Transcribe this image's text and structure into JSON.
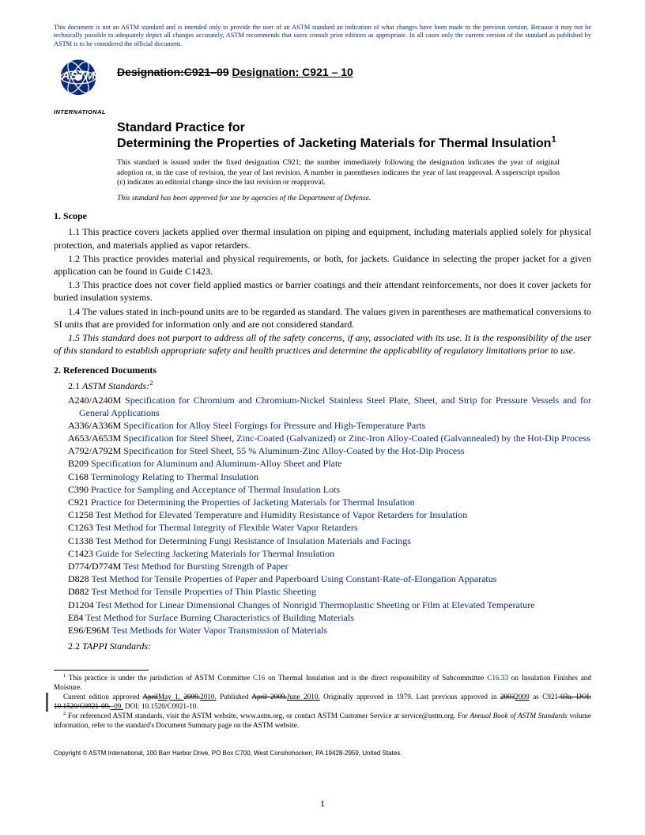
{
  "colors": {
    "link": "#0a2a7a",
    "text": "#000000",
    "bg": "#ffffff",
    "changebar": "#555555"
  },
  "disclaimer": "This document is not an ASTM standard and is intended only to provide the user of an ASTM standard an indication of what changes have been made to the previous version. Because it may not be technically possible to adequately depict all changes accurately, ASTM recommends that users consult prior editions as appropriate. In all cases only the current version of the standard as published by ASTM is to be considered the official document.",
  "logo_label": "INTERNATIONAL",
  "designation": {
    "old_prefix": "Designation:",
    "old_code": "C921–09",
    "new_full": "Designation: C921 – 10"
  },
  "title_lead": "Standard Practice for",
  "title_main": "Determining the Properties of Jacketing Materials for Thermal Insulation",
  "title_sup": "1",
  "issue_note": "This standard is issued under the fixed designation C921; the number immediately following the designation indicates the year of original adoption or, in the case of revision, the year of last revision. A number in parentheses indicates the year of last reapproval. A superscript epsilon (ε) indicates an editorial change since the last revision or reapproval.",
  "dod_note": "This standard has been approved for use by agencies of the Department of Defense.",
  "scope": {
    "head": "1.  Scope",
    "p1": "1.1 This practice covers jackets applied over thermal insulation on piping and equipment, including materials applied solely for physical protection, and materials applied as vapor retarders.",
    "p2": "1.2 This practice provides material and physical requirements, or both, for jackets. Guidance in selecting the proper jacket for a given application can be found in Guide C1423.",
    "p3": "1.3 This practice does not cover field applied mastics or barrier coatings and their attendant reinforcements, nor does it cover jackets for buried insulation systems.",
    "p4": "1.4 The values stated in inch-pound units are to be regarded as standard. The values given in parentheses are mathematical conversions to SI units that are provided for information only and are not considered standard.",
    "p5": "1.5 This standard does not purport to address all of the safety concerns, if any, associated with its use. It is the responsibility of the user of this standard to establish appropriate safety and health practices and determine the applicability of regulatory limitations prior to use."
  },
  "refs": {
    "head": "2.  Referenced Documents",
    "sub1_pre": "2.1 ",
    "sub1": "ASTM Standards:",
    "sub1_sup": "2",
    "items": [
      {
        "code": "A240/A240M",
        "title": "Specification for Chromium and Chromium-Nickel Stainless Steel Plate, Sheet, and Strip for Pressure Vessels and for General Applications"
      },
      {
        "code": "A336/A336M",
        "title": "Specification for Alloy Steel Forgings for Pressure and High-Temperature Parts"
      },
      {
        "code": "A653/A653M",
        "title": "Specification for Steel Sheet, Zinc-Coated (Galvanized) or Zinc-Iron Alloy-Coated (Galvannealed) by the Hot-Dip Process"
      },
      {
        "code": "A792/A792M",
        "title": "Specification for Steel Sheet, 55 % Aluminum-Zinc Alloy-Coated by the Hot-Dip Process"
      },
      {
        "code": "B209",
        "title": "Specification for Aluminum and Aluminum-Alloy Sheet and Plate"
      },
      {
        "code": "C168",
        "title": "Terminology Relating to Thermal Insulation"
      },
      {
        "code": "C390",
        "title": "Practice for Sampling and Acceptance of Thermal Insulation Lots"
      },
      {
        "code": "C921",
        "title": "Practice for Determining the Properties of Jacketing Materials for Thermal Insulation"
      },
      {
        "code": "C1258",
        "title": "Test Method for Elevated Temperature and Humidity Resistance of Vapor Retarders for Insulation"
      },
      {
        "code": "C1263",
        "title": "Test Method for Thermal Integrity of Flexible Water Vapor Retarders"
      },
      {
        "code": "C1338",
        "title": "Test Method for Determining Fungi Resistance of Insulation Materials and Facings"
      },
      {
        "code": "C1423",
        "title": "Guide for Selecting Jacketing Materials for Thermal Insulation"
      },
      {
        "code": "D774/D774M",
        "title": "Test Method for Bursting Strength of Paper"
      },
      {
        "code": "D828",
        "title": "Test Method for Tensile Properties of Paper and Paperboard Using Constant-Rate-of-Elongation Apparatus"
      },
      {
        "code": "D882",
        "title": "Test Method for Tensile Properties of Thin Plastic Sheeting"
      },
      {
        "code": "D1204",
        "title": "Test Method for Linear Dimensional Changes of Nonrigid Thermoplastic Sheeting or Film at Elevated Temperature"
      },
      {
        "code": "E84",
        "title": "Test Method for Surface Burning Characteristics of Building Materials"
      },
      {
        "code": "E96/E96M",
        "title": "Test Methods for Water Vapor Transmission of Materials"
      }
    ],
    "sub2_pre": "2.2  ",
    "sub2": "TAPPI Standards:"
  },
  "footnote1": {
    "sup": "1",
    "pre": " This practice is under the jurisdiction of ASTM Committee ",
    "link1": "C16",
    "mid": " on Thermal Insulation and is the direct responsibility of Subcommittee ",
    "link2": "C16.33",
    "post": " on Insulation Finishes and Moisture."
  },
  "footnote1b": {
    "a": "Current edition approved ",
    "strike1": "April",
    "ins1": "May 1, ",
    "strike2": "2009.",
    "ins2": "2010.",
    "b": " Published ",
    "strike3": "April 2009.",
    "ins3": "June 2010.",
    "c": " Originally approved in 1979. Last previous approved in ",
    "strike4": "2003",
    "ins4": "2009",
    "d": " as C921",
    "strike5": "-03a. DOI: 10.1520/C0921-09.",
    "ins5": "–09.",
    "e": " DOI: 10.1520/C0921-10."
  },
  "footnote2": {
    "sup": "2",
    "text": " For referenced ASTM standards, visit the ASTM website, www.astm.org, or contact ASTM Customer Service at service@astm.org. For Annual Book of ASTM Standards volume information, refer to the standard's Document Summary page on the ASTM website.",
    "italic_phrase": "Annual Book of ASTM Standards"
  },
  "copyright": "Copyright © ASTM International, 100 Barr Harbor Drive, PO Box C700, West Conshohocken, PA 19428-2959, United States.",
  "page_number": "1"
}
